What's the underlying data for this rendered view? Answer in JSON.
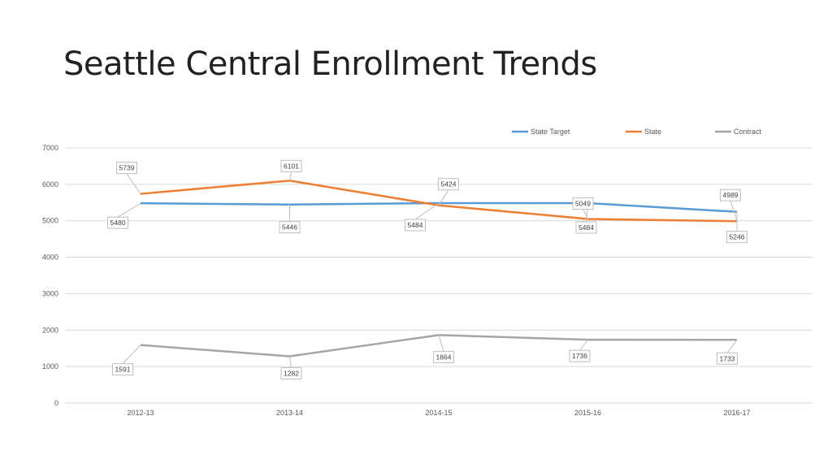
{
  "slide": {
    "title": "Seattle Central Enrollment Trends"
  },
  "chart_data": {
    "type": "line",
    "categories": [
      "2012-13",
      "2013-14",
      "2014-15",
      "2015-16",
      "2016-17"
    ],
    "ylim": [
      0,
      7000
    ],
    "yticks": [
      0,
      1000,
      2000,
      3000,
      4000,
      5000,
      6000,
      7000
    ],
    "grid": true,
    "legend_position": "top-right",
    "series": [
      {
        "name": "State Target",
        "color": "#5B9BD5",
        "values": [
          5480,
          5446,
          5484,
          5484,
          5246
        ]
      },
      {
        "name": "State",
        "color": "#ED7D31",
        "values": [
          5739,
          6101,
          5424,
          5049,
          4989
        ]
      },
      {
        "name": "Contract",
        "color": "#A5A5A5",
        "values": [
          1591,
          1282,
          1864,
          1736,
          1733
        ]
      }
    ]
  }
}
